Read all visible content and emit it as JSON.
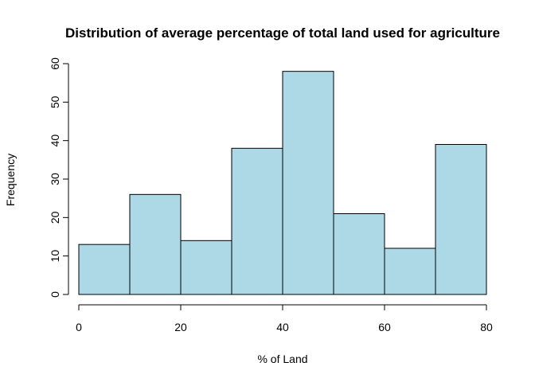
{
  "chart_data": {
    "type": "bar",
    "title": "Distribution of average percentage of total land used for agriculture",
    "xlabel": "% of Land",
    "ylabel": "Frequency",
    "bins": [
      [
        0,
        10
      ],
      [
        10,
        20
      ],
      [
        20,
        30
      ],
      [
        30,
        40
      ],
      [
        40,
        50
      ],
      [
        50,
        60
      ],
      [
        60,
        70
      ],
      [
        70,
        80
      ]
    ],
    "values": [
      13,
      26,
      14,
      38,
      58,
      21,
      12,
      39
    ],
    "xlim": [
      0,
      80
    ],
    "ylim": [
      0,
      60
    ],
    "x_ticks": [
      0,
      20,
      40,
      60,
      80
    ],
    "y_ticks": [
      0,
      10,
      20,
      30,
      40,
      50,
      60
    ],
    "bar_color": "#add8e6",
    "grid": false,
    "legend": "none"
  }
}
